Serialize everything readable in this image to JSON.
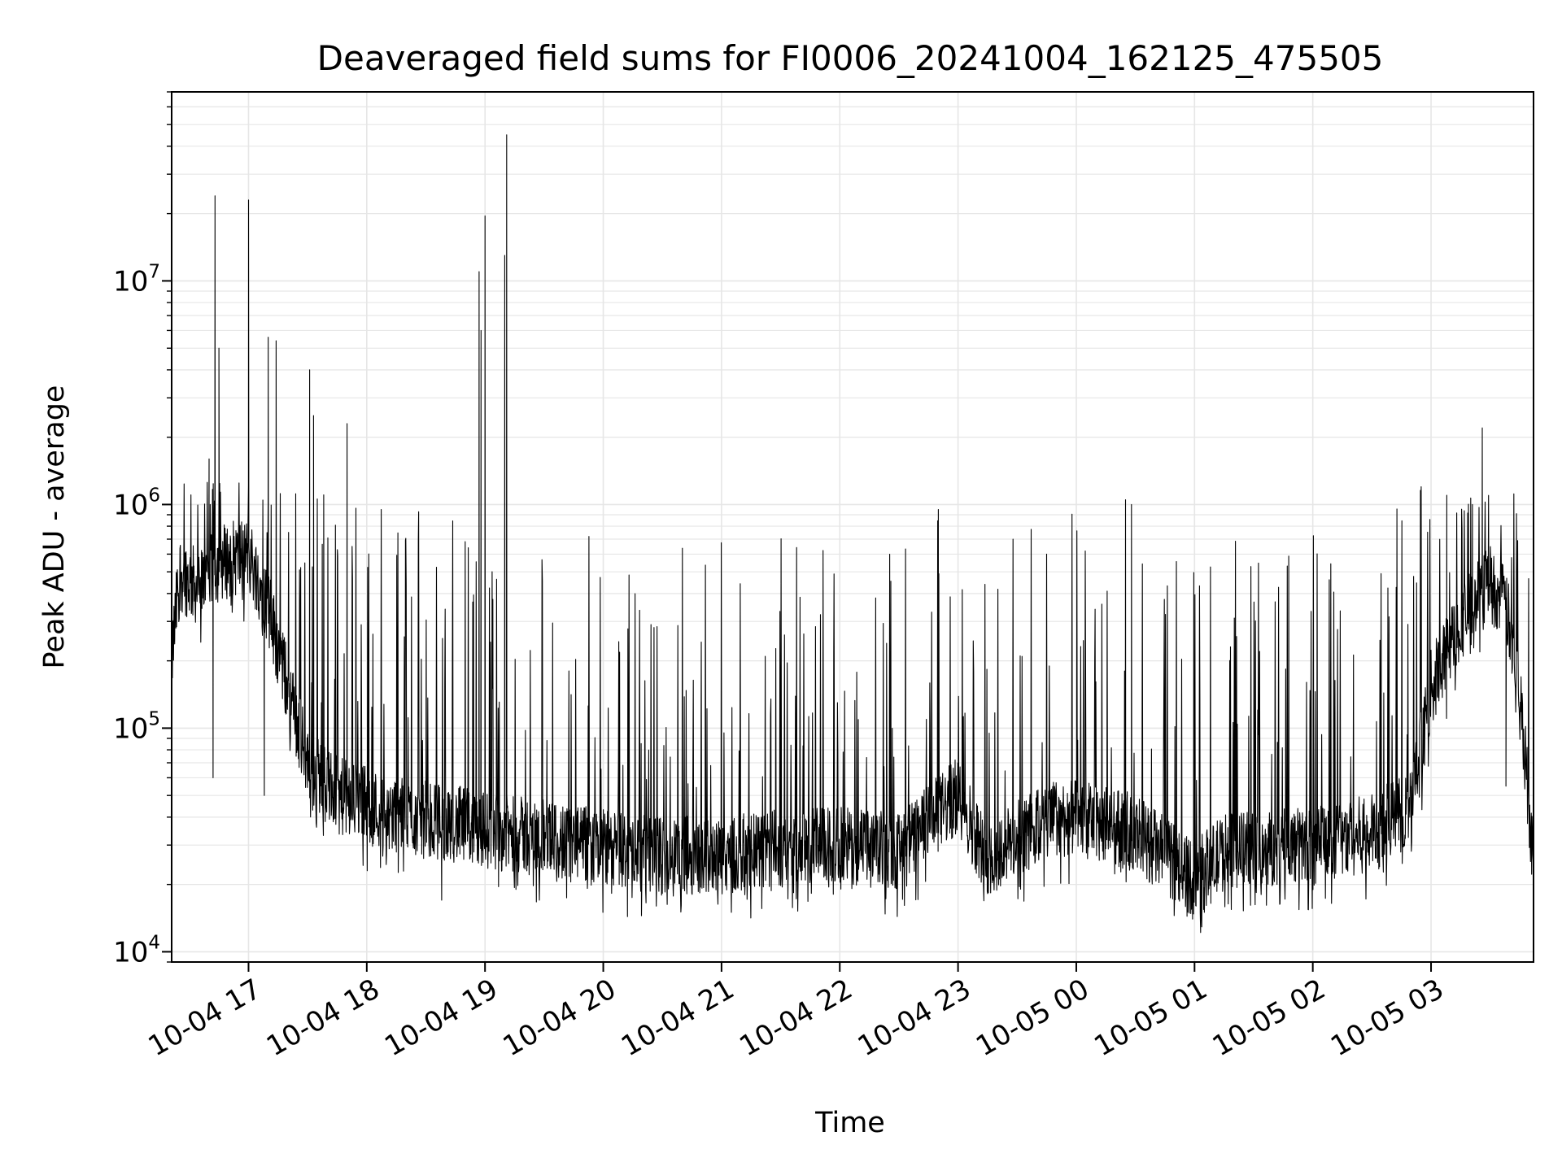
{
  "chart_data": {
    "type": "line",
    "title": "Deaveraged field sums for FI0006_20241004_162125_475505",
    "xlabel": "Time",
    "ylabel": "Peak ADU - average",
    "yscale": "log",
    "ylim": [
      9000,
      70000000
    ],
    "xlim": [
      "2024-10-04 16:21",
      "2024-10-05 03:52"
    ],
    "grid": true,
    "line_color": "#000000",
    "grid_color": "#e6e6e6",
    "x_ticks": [
      {
        "value": "2024-10-04 17:00",
        "label": "10-04 17"
      },
      {
        "value": "2024-10-04 18:00",
        "label": "10-04 18"
      },
      {
        "value": "2024-10-04 19:00",
        "label": "10-04 19"
      },
      {
        "value": "2024-10-04 20:00",
        "label": "10-04 20"
      },
      {
        "value": "2024-10-04 21:00",
        "label": "10-04 21"
      },
      {
        "value": "2024-10-04 22:00",
        "label": "10-04 22"
      },
      {
        "value": "2024-10-04 23:00",
        "label": "10-04 23"
      },
      {
        "value": "2024-10-05 00:00",
        "label": "10-05 00"
      },
      {
        "value": "2024-10-05 01:00",
        "label": "10-05 01"
      },
      {
        "value": "2024-10-05 02:00",
        "label": "10-05 02"
      },
      {
        "value": "2024-10-05 03:00",
        "label": "10-05 03"
      }
    ],
    "y_ticks": [
      {
        "value": 10000,
        "base": "10",
        "exp": "4"
      },
      {
        "value": 100000,
        "base": "10",
        "exp": "5"
      },
      {
        "value": 1000000,
        "base": "10",
        "exp": "6"
      },
      {
        "value": 10000000,
        "base": "10",
        "exp": "7"
      }
    ],
    "series": [
      {
        "baseline": [
          [
            "2024-10-04 16:21",
            200000
          ],
          [
            "2024-10-04 16:25",
            500000
          ],
          [
            "2024-10-04 16:35",
            420000
          ],
          [
            "2024-10-04 16:45",
            550000
          ],
          [
            "2024-10-04 17:00",
            600000
          ],
          [
            "2024-10-04 17:10",
            350000
          ],
          [
            "2024-10-04 17:20",
            150000
          ],
          [
            "2024-10-04 17:30",
            70000
          ],
          [
            "2024-10-04 17:45",
            50000
          ],
          [
            "2024-10-04 18:00",
            45000
          ],
          [
            "2024-10-04 18:20",
            40000
          ],
          [
            "2024-10-04 18:40",
            38000
          ],
          [
            "2024-10-04 19:00",
            35000
          ],
          [
            "2024-10-04 19:30",
            32000
          ],
          [
            "2024-10-04 20:00",
            29000
          ],
          [
            "2024-10-04 20:30",
            27000
          ],
          [
            "2024-10-04 21:00",
            27000
          ],
          [
            "2024-10-04 21:30",
            29000
          ],
          [
            "2024-10-04 22:00",
            30000
          ],
          [
            "2024-10-04 22:30",
            28000
          ],
          [
            "2024-10-04 23:00",
            50000
          ],
          [
            "2024-10-04 23:15",
            26000
          ],
          [
            "2024-10-04 23:30",
            32000
          ],
          [
            "2024-10-04 23:50",
            40000
          ],
          [
            "2024-10-05 00:10",
            38000
          ],
          [
            "2024-10-05 00:30",
            34000
          ],
          [
            "2024-10-05 00:45",
            27000
          ],
          [
            "2024-10-05 01:00",
            21000
          ],
          [
            "2024-10-05 01:15",
            28000
          ],
          [
            "2024-10-05 01:30",
            29000
          ],
          [
            "2024-10-05 02:00",
            30000
          ],
          [
            "2024-10-05 02:30",
            34000
          ],
          [
            "2024-10-05 02:50",
            45000
          ],
          [
            "2024-10-05 03:00",
            150000
          ],
          [
            "2024-10-05 03:15",
            300000
          ],
          [
            "2024-10-05 03:30",
            450000
          ],
          [
            "2024-10-05 03:38",
            350000
          ],
          [
            "2024-10-05 03:45",
            150000
          ],
          [
            "2024-10-05 03:52",
            25000
          ]
        ],
        "spikes": [
          [
            "2024-10-04 16:40",
            1600000
          ],
          [
            "2024-10-04 16:42",
            60000
          ],
          [
            "2024-10-04 16:43",
            24000000
          ],
          [
            "2024-10-04 16:45",
            5000000
          ],
          [
            "2024-10-04 17:00",
            23000000
          ],
          [
            "2024-10-04 17:08",
            50000
          ],
          [
            "2024-10-04 17:10",
            5600000
          ],
          [
            "2024-10-04 17:14",
            5400000
          ],
          [
            "2024-10-04 17:31",
            4000000
          ],
          [
            "2024-10-04 17:33",
            2500000
          ],
          [
            "2024-10-04 17:50",
            2300000
          ],
          [
            "2024-10-04 18:38",
            17000
          ],
          [
            "2024-10-04 18:57",
            11000000
          ],
          [
            "2024-10-04 18:58",
            6000000
          ],
          [
            "2024-10-04 19:00",
            19500000
          ],
          [
            "2024-10-04 19:10",
            13000000
          ],
          [
            "2024-10-04 19:11",
            45000000
          ],
          [
            "2024-10-04 21:05",
            15000
          ],
          [
            "2024-10-04 22:50",
            950000
          ],
          [
            "2024-10-05 00:25",
            1050000
          ],
          [
            "2024-10-05 00:28",
            1000000
          ],
          [
            "2024-10-05 00:59",
            14000
          ],
          [
            "2024-10-05 01:05",
            15000
          ],
          [
            "2024-10-05 02:55",
            1200000
          ],
          [
            "2024-10-05 03:08",
            1100000
          ],
          [
            "2024-10-05 03:21",
            1000000
          ],
          [
            "2024-10-05 03:26",
            2200000
          ],
          [
            "2024-10-05 03:38",
            55000
          ]
        ]
      }
    ]
  }
}
